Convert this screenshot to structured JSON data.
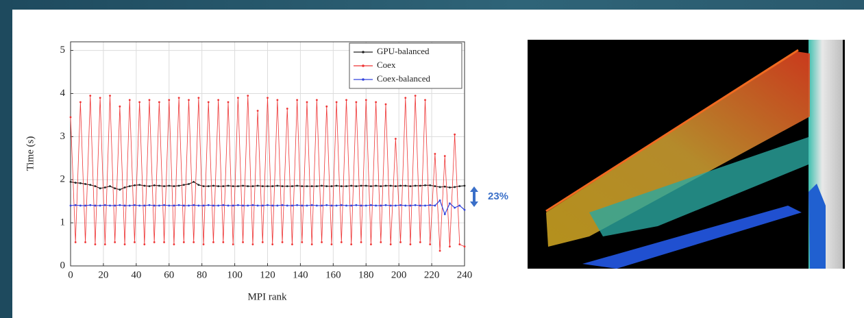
{
  "chart_data": {
    "type": "line",
    "ylabel": "Time (s)",
    "xlabel": "MPI rank",
    "annotation": "23%",
    "xlim": [
      0,
      240
    ],
    "ylim": [
      0,
      5.2
    ],
    "xticks": [
      0,
      20,
      40,
      60,
      80,
      100,
      120,
      140,
      160,
      180,
      200,
      220,
      240
    ],
    "yticks": [
      0,
      1,
      2,
      3,
      4,
      5
    ],
    "grid": true,
    "legend": "upper right",
    "x": [
      0,
      3,
      6,
      9,
      12,
      15,
      18,
      21,
      24,
      27,
      30,
      33,
      36,
      39,
      42,
      45,
      48,
      51,
      54,
      57,
      60,
      63,
      66,
      69,
      72,
      75,
      78,
      81,
      84,
      87,
      90,
      93,
      96,
      99,
      102,
      105,
      108,
      111,
      114,
      117,
      120,
      123,
      126,
      129,
      132,
      135,
      138,
      141,
      144,
      147,
      150,
      153,
      156,
      159,
      162,
      165,
      168,
      171,
      174,
      177,
      180,
      183,
      186,
      189,
      192,
      195,
      198,
      201,
      204,
      207,
      210,
      213,
      216,
      219,
      222,
      225,
      228,
      231,
      234,
      237,
      240
    ],
    "series": [
      {
        "name": "GPU-balanced",
        "color": "#222222",
        "values": [
          1.95,
          1.93,
          1.92,
          1.9,
          1.88,
          1.85,
          1.8,
          1.82,
          1.85,
          1.8,
          1.77,
          1.82,
          1.85,
          1.87,
          1.88,
          1.86,
          1.85,
          1.87,
          1.86,
          1.85,
          1.86,
          1.85,
          1.86,
          1.88,
          1.9,
          1.95,
          1.88,
          1.85,
          1.85,
          1.86,
          1.85,
          1.85,
          1.86,
          1.85,
          1.85,
          1.86,
          1.85,
          1.85,
          1.86,
          1.85,
          1.85,
          1.85,
          1.86,
          1.85,
          1.85,
          1.85,
          1.86,
          1.85,
          1.85,
          1.85,
          1.85,
          1.86,
          1.85,
          1.85,
          1.86,
          1.85,
          1.85,
          1.86,
          1.85,
          1.86,
          1.86,
          1.85,
          1.86,
          1.85,
          1.86,
          1.86,
          1.85,
          1.86,
          1.86,
          1.85,
          1.86,
          1.86,
          1.87,
          1.87,
          1.85,
          1.83,
          1.84,
          1.82,
          1.83,
          1.85,
          1.86
        ]
      },
      {
        "name": "Coex",
        "color": "#ee3333",
        "values": [
          3.45,
          0.55,
          3.8,
          0.55,
          3.95,
          0.5,
          3.9,
          0.5,
          3.95,
          0.55,
          3.7,
          0.5,
          3.85,
          0.55,
          3.8,
          0.5,
          3.85,
          0.55,
          3.8,
          0.55,
          3.85,
          0.5,
          3.9,
          0.55,
          3.85,
          0.55,
          3.9,
          0.5,
          3.8,
          0.55,
          3.85,
          0.55,
          3.8,
          0.5,
          3.9,
          0.55,
          3.95,
          0.5,
          3.6,
          0.55,
          3.9,
          0.5,
          3.85,
          0.55,
          3.65,
          0.5,
          3.85,
          0.55,
          3.8,
          0.5,
          3.85,
          0.55,
          3.7,
          0.5,
          3.8,
          0.55,
          3.85,
          0.5,
          3.8,
          0.55,
          3.85,
          0.5,
          3.8,
          0.55,
          3.75,
          0.5,
          2.95,
          0.55,
          3.9,
          0.5,
          3.95,
          0.55,
          3.85,
          0.5,
          2.6,
          0.35,
          2.55,
          0.45,
          3.05,
          0.5,
          0.45
        ]
      },
      {
        "name": "Coex-balanced",
        "color": "#3344dd",
        "values": [
          1.4,
          1.41,
          1.4,
          1.4,
          1.41,
          1.4,
          1.4,
          1.41,
          1.4,
          1.4,
          1.41,
          1.4,
          1.4,
          1.41,
          1.4,
          1.4,
          1.41,
          1.4,
          1.4,
          1.41,
          1.4,
          1.4,
          1.41,
          1.4,
          1.4,
          1.41,
          1.4,
          1.4,
          1.41,
          1.4,
          1.4,
          1.41,
          1.4,
          1.4,
          1.41,
          1.4,
          1.4,
          1.41,
          1.4,
          1.4,
          1.41,
          1.4,
          1.4,
          1.41,
          1.4,
          1.4,
          1.41,
          1.4,
          1.4,
          1.41,
          1.4,
          1.4,
          1.41,
          1.4,
          1.4,
          1.41,
          1.4,
          1.4,
          1.41,
          1.4,
          1.4,
          1.41,
          1.4,
          1.4,
          1.41,
          1.4,
          1.4,
          1.41,
          1.4,
          1.4,
          1.41,
          1.4,
          1.4,
          1.41,
          1.4,
          1.52,
          1.2,
          1.45,
          1.35,
          1.4,
          1.3
        ]
      }
    ]
  }
}
